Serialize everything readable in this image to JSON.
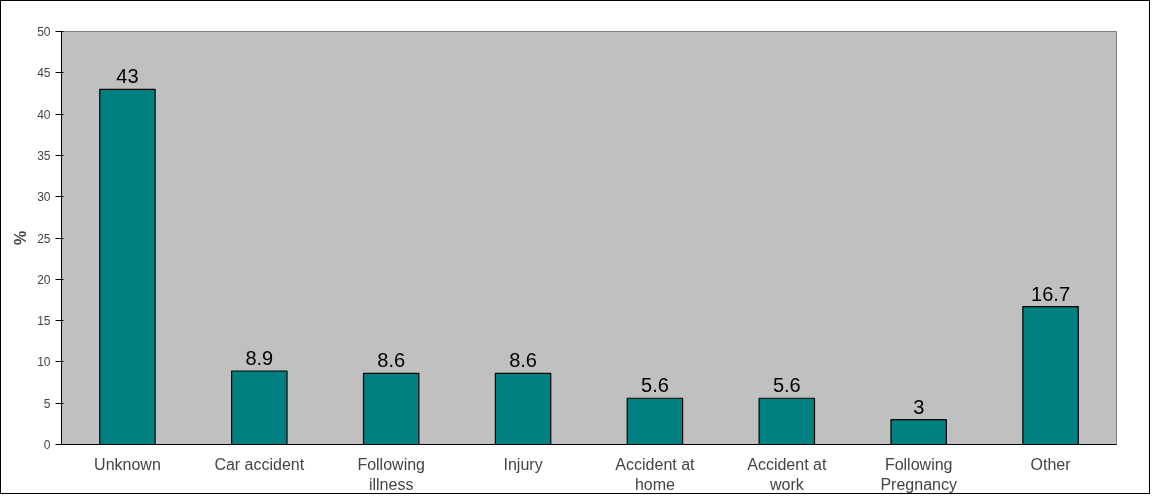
{
  "chart_data": {
    "type": "bar",
    "categories": [
      "Unknown",
      "Car accident",
      "Following illness",
      "Injury",
      "Accident at home",
      "Accident at work",
      "Following Pregnancy",
      "Other"
    ],
    "values": [
      43,
      8.9,
      8.6,
      8.6,
      5.6,
      5.6,
      3,
      16.7
    ],
    "color": "#008080",
    "ylabel": "%",
    "ylim": [
      0,
      50
    ],
    "yticks": [
      0,
      5,
      10,
      15,
      20,
      25,
      30,
      35,
      40,
      45,
      50
    ],
    "data_labels": true,
    "grid": false
  }
}
